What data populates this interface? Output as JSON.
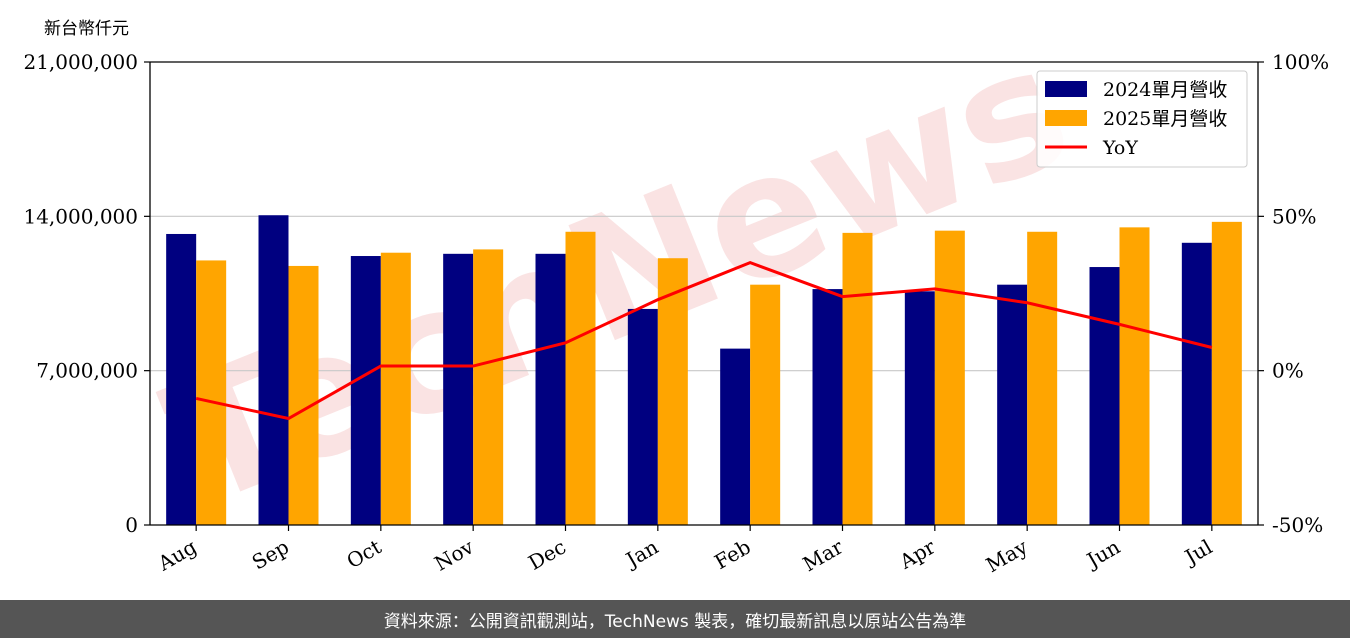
{
  "unit_label": "新台幣仟元",
  "footer_text": "資料來源：公開資訊觀測站，TechNews 製表，確切最新訊息以原站公告為準",
  "watermark": "TechNews",
  "colors": {
    "s2024": "#000080",
    "s2025": "#FFA500",
    "yoy": "#FF0000"
  },
  "chart_data": {
    "type": "bar",
    "categories": [
      "Aug",
      "Sep",
      "Oct",
      "Nov",
      "Dec",
      "Jan",
      "Feb",
      "Mar",
      "Apr",
      "May",
      "Jun",
      "Jul"
    ],
    "series": [
      {
        "name": "2024單月營收",
        "values": [
          13200000,
          14050000,
          12200000,
          12300000,
          12300000,
          9800000,
          8000000,
          10700000,
          10600000,
          10900000,
          11700000,
          12800000
        ]
      },
      {
        "name": "2025單月營收",
        "values": [
          12000000,
          11750000,
          12350000,
          12500000,
          13300000,
          12100000,
          10900000,
          13250000,
          13350000,
          13300000,
          13500000,
          13750000
        ]
      }
    ],
    "line_series": {
      "name": "YoY",
      "values": [
        -9,
        -15.5,
        1.5,
        1.5,
        9,
        23,
        35,
        24,
        26.5,
        22,
        15,
        7.5
      ]
    },
    "ylim": [
      0,
      21000000
    ],
    "yticks": [
      "0",
      "7,000,000",
      "14,000,000",
      "21,000,000"
    ],
    "y2lim": [
      -50,
      100
    ],
    "y2ticks": [
      "-50%",
      "0%",
      "50%",
      "100%"
    ],
    "grid": true,
    "legend_position": "top-right"
  }
}
